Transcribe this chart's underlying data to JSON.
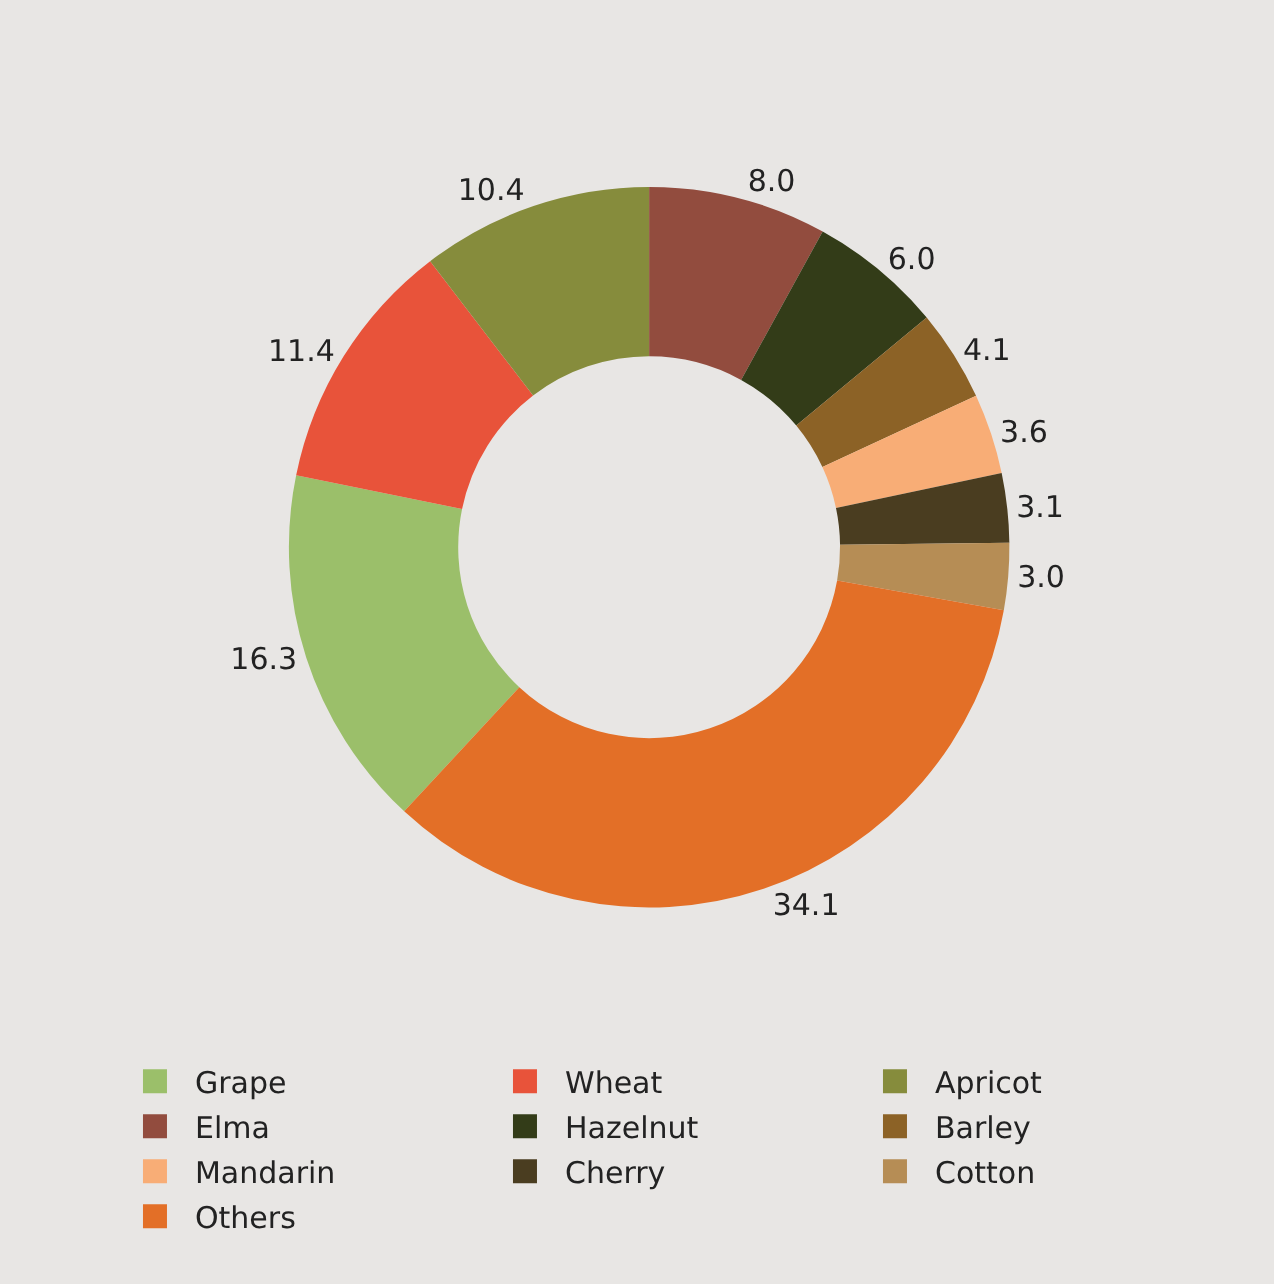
{
  "chart_data": {
    "type": "donut",
    "categories": [
      "Grape",
      "Wheat",
      "Apricot",
      "Elma",
      "Hazelnut",
      "Barley",
      "Mandarin",
      "Cherry",
      "Cotton",
      "Others"
    ],
    "values": [
      16.3,
      11.4,
      10.4,
      8.0,
      6.0,
      4.1,
      3.6,
      3.1,
      3.0,
      34.1
    ],
    "colors": [
      "#9bbf6a",
      "#e8533a",
      "#868c3c",
      "#924c3e",
      "#333c18",
      "#8c6226",
      "#f8ad76",
      "#4a3d20",
      "#b68d55",
      "#e36f27"
    ],
    "value_labels": [
      "16.3",
      "11.4",
      "10.4",
      "8.0",
      "6.0",
      "4.1",
      "3.6",
      "3.1",
      "3.0",
      "34.1"
    ],
    "legend": "bottom"
  }
}
